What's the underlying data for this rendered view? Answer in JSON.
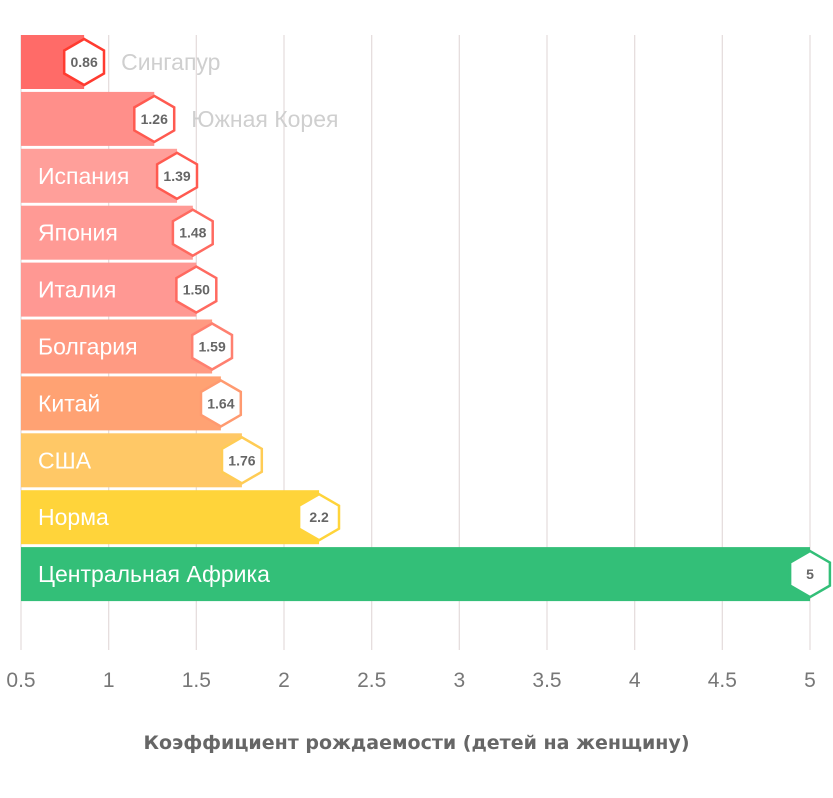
{
  "chart_data": {
    "type": "bar",
    "orientation": "horizontal",
    "categories": [
      "Сингапур",
      "Южная Корея",
      "Испания",
      "Япония",
      "Италия",
      "Болгария",
      "Китай",
      "США",
      "Норма",
      "Центральная Африка"
    ],
    "values": [
      0.86,
      1.26,
      1.39,
      1.48,
      1.5,
      1.59,
      1.64,
      1.76,
      2.2,
      5
    ],
    "value_labels": [
      "0.86",
      "1.26",
      "1.39",
      "1.48",
      "1.50",
      "1.59",
      "1.64",
      "1.76",
      "2.2",
      "5"
    ],
    "colors": [
      "#ff6b68",
      "#ff8f8a",
      "#ff9f9a",
      "#ff9a95",
      "#ff9893",
      "#ff9a82",
      "#ffa273",
      "#ffc866",
      "#ffd43a",
      "#33bf78"
    ],
    "marker_colors": [
      "#ff3b30",
      "#ff5a50",
      "#ff5a50",
      "#ff6a60",
      "#ff6a60",
      "#ff8070",
      "#ff9a70",
      "#ffcc55",
      "#ffd43a",
      "#33bf78"
    ],
    "xlabel": "Коэффициент рождаемости (детей на женщину)",
    "xticks": [
      0.5,
      1,
      1.5,
      2,
      2.5,
      3,
      3.5,
      4,
      4.5,
      5
    ],
    "xtick_labels": [
      "0.5",
      "1",
      "1.5",
      "2",
      "2.5",
      "3",
      "3.5",
      "4",
      "4.5",
      "5"
    ],
    "xlim": [
      0.5,
      5
    ],
    "grid": true
  }
}
